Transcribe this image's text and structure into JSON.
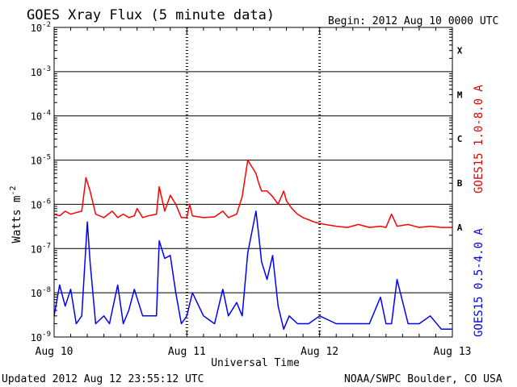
{
  "chart_data": {
    "type": "line",
    "title": "GOES Xray Flux (5 minute data)",
    "begin_label": "Begin:  2012 Aug 10 0000 UTC",
    "xlabel": "Universal Time",
    "ylabel_main": "Watts m",
    "ylabel_exp": "-2",
    "x_ticks": [
      "Aug 10",
      "Aug 11",
      "Aug 12",
      "Aug 13"
    ],
    "y_ticks": [
      {
        "exp": "-9"
      },
      {
        "exp": "-8"
      },
      {
        "exp": "-7"
      },
      {
        "exp": "-6"
      },
      {
        "exp": "-5"
      },
      {
        "exp": "-4"
      },
      {
        "exp": "-3"
      },
      {
        "exp": "-2"
      }
    ],
    "y_scale": "log",
    "ylim": [
      1e-09,
      0.01
    ],
    "xlim": [
      "2012-08-10T00:00",
      "2012-08-13T00:00"
    ],
    "flare_classes": [
      {
        "label": "A",
        "value": 1e-07
      },
      {
        "label": "B",
        "value": 1e-06
      },
      {
        "label": "C",
        "value": 1e-05
      },
      {
        "label": "M",
        "value": 0.0001
      },
      {
        "label": "X",
        "value": 0.001
      }
    ],
    "series": [
      {
        "name": "GOES15 1.0-8.0 A",
        "color": "#ff0000",
        "x": [
          "2012-08-10T00:00",
          "2012-08-10T01:00",
          "2012-08-10T02:00",
          "2012-08-10T03:00",
          "2012-08-10T04:00",
          "2012-08-10T05:00",
          "2012-08-10T05:45",
          "2012-08-10T06:30",
          "2012-08-10T07:30",
          "2012-08-10T09:00",
          "2012-08-10T10:30",
          "2012-08-10T11:30",
          "2012-08-10T12:30",
          "2012-08-10T13:30",
          "2012-08-10T14:30",
          "2012-08-10T15:00",
          "2012-08-10T16:00",
          "2012-08-10T17:00",
          "2012-08-10T18:30",
          "2012-08-10T19:00",
          "2012-08-10T20:00",
          "2012-08-10T21:00",
          "2012-08-10T22:00",
          "2012-08-10T23:00",
          "2012-08-11T00:00",
          "2012-08-11T00:30",
          "2012-08-11T01:00",
          "2012-08-11T03:00",
          "2012-08-11T05:00",
          "2012-08-11T06:30",
          "2012-08-11T07:30",
          "2012-08-11T09:00",
          "2012-08-11T10:00",
          "2012-08-11T11:00",
          "2012-08-11T12:30",
          "2012-08-11T13:00",
          "2012-08-11T13:30",
          "2012-08-11T14:30",
          "2012-08-11T15:30",
          "2012-08-11T16:30",
          "2012-08-11T17:30",
          "2012-08-11T18:00",
          "2012-08-11T19:00",
          "2012-08-11T20:00",
          "2012-08-11T21:00",
          "2012-08-11T22:00",
          "2012-08-11T23:00",
          "2012-08-12T00:00",
          "2012-08-12T01:00",
          "2012-08-12T03:00",
          "2012-08-12T05:00",
          "2012-08-12T07:00",
          "2012-08-12T09:00",
          "2012-08-12T11:00",
          "2012-08-12T12:00",
          "2012-08-12T13:00",
          "2012-08-12T14:00",
          "2012-08-12T16:00",
          "2012-08-12T18:00",
          "2012-08-12T20:00",
          "2012-08-12T22:00",
          "2012-08-12T23:55"
        ],
        "y": [
          6e-07,
          5.5e-07,
          7e-07,
          6e-07,
          6.5e-07,
          7e-07,
          4e-06,
          2e-06,
          6e-07,
          5e-07,
          7e-07,
          5e-07,
          6e-07,
          5e-07,
          5.5e-07,
          8e-07,
          5e-07,
          5.5e-07,
          6e-07,
          2.5e-06,
          7e-07,
          1.6e-06,
          1e-06,
          5e-07,
          5e-07,
          1e-06,
          5.5e-07,
          5e-07,
          5.2e-07,
          7e-07,
          5e-07,
          6e-07,
          1.5e-06,
          1e-05,
          5e-06,
          3e-06,
          2e-06,
          2e-06,
          1.5e-06,
          1e-06,
          2e-06,
          1.2e-06,
          8e-07,
          6e-07,
          5e-07,
          4.5e-07,
          4e-07,
          3.7e-07,
          3.5e-07,
          3.2e-07,
          3e-07,
          3.5e-07,
          3e-07,
          3.2e-07,
          3e-07,
          6e-07,
          3.2e-07,
          3.5e-07,
          3e-07,
          3.2e-07,
          3e-07,
          3e-07
        ]
      },
      {
        "name": "GOES15 0.5-4.0 A",
        "color": "#0000ff",
        "x": [
          "2012-08-10T00:00",
          "2012-08-10T01:00",
          "2012-08-10T02:00",
          "2012-08-10T03:00",
          "2012-08-10T04:00",
          "2012-08-10T05:00",
          "2012-08-10T06:00",
          "2012-08-10T06:30",
          "2012-08-10T07:30",
          "2012-08-10T09:00",
          "2012-08-10T10:00",
          "2012-08-10T11:30",
          "2012-08-10T12:30",
          "2012-08-10T13:30",
          "2012-08-10T14:30",
          "2012-08-10T16:00",
          "2012-08-10T18:30",
          "2012-08-10T19:00",
          "2012-08-10T20:00",
          "2012-08-10T21:00",
          "2012-08-10T22:00",
          "2012-08-10T23:00",
          "2012-08-11T00:00",
          "2012-08-11T01:00",
          "2012-08-11T03:00",
          "2012-08-11T05:00",
          "2012-08-11T06:30",
          "2012-08-11T07:30",
          "2012-08-11T09:00",
          "2012-08-11T10:00",
          "2012-08-11T11:00",
          "2012-08-11T12:30",
          "2012-08-11T13:00",
          "2012-08-11T13:30",
          "2012-08-11T14:30",
          "2012-08-11T15:30",
          "2012-08-11T16:30",
          "2012-08-11T17:30",
          "2012-08-11T18:30",
          "2012-08-11T20:00",
          "2012-08-11T22:00",
          "2012-08-12T00:00",
          "2012-08-12T03:00",
          "2012-08-12T05:00",
          "2012-08-12T07:00",
          "2012-08-12T09:00",
          "2012-08-12T11:00",
          "2012-08-12T12:00",
          "2012-08-12T13:00",
          "2012-08-12T14:00",
          "2012-08-12T16:00",
          "2012-08-12T18:00",
          "2012-08-12T20:00",
          "2012-08-12T22:00",
          "2012-08-12T23:55"
        ],
        "y": [
          3e-09,
          1.5e-08,
          5e-09,
          1.2e-08,
          2e-09,
          3e-09,
          4e-07,
          5e-08,
          2e-09,
          3e-09,
          2e-09,
          1.5e-08,
          2e-09,
          4e-09,
          1.2e-08,
          3e-09,
          3e-09,
          1.5e-07,
          6e-08,
          7e-08,
          1e-08,
          2e-09,
          3e-09,
          1e-08,
          3e-09,
          2e-09,
          1.2e-08,
          3e-09,
          6e-09,
          3e-09,
          8e-08,
          7e-07,
          2e-07,
          5e-08,
          2e-08,
          7e-08,
          5e-09,
          1.5e-09,
          3e-09,
          2e-09,
          2e-09,
          3e-09,
          2e-09,
          2e-09,
          2e-09,
          2e-09,
          8e-09,
          2e-09,
          2e-09,
          2e-08,
          2e-09,
          2e-09,
          3e-09,
          1.5e-09,
          1.5e-09
        ]
      }
    ],
    "legend": {
      "red_label": "GOES15 1.0-8.0 A",
      "blue_label": "GOES15 0.5-4.0 A"
    }
  },
  "footer": {
    "updated": "Updated 2012 Aug 12 23:55:12 UTC",
    "credit": "NOAA/SWPC Boulder, CO USA"
  }
}
